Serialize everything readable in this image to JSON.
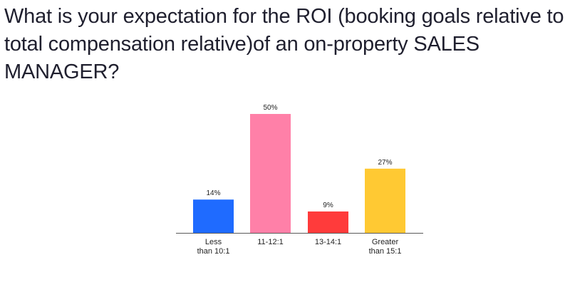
{
  "question": {
    "text": "What is your expectation for the ROI (booking goals relative to total compensation relative)of an on-property SALES MANAGER?"
  },
  "chart_data": {
    "type": "bar",
    "categories": [
      [
        "Less",
        "than 10:1"
      ],
      [
        "11-12:1"
      ],
      [
        "13-14:1"
      ],
      [
        "Greater",
        "than 15:1"
      ]
    ],
    "values": [
      14,
      50,
      9,
      27
    ],
    "value_labels": [
      "14%",
      "50%",
      "9%",
      "27%"
    ],
    "colors": [
      "#1f6bff",
      "#ff80a8",
      "#ff3b3b",
      "#ffc933"
    ],
    "ylim": [
      0,
      50
    ],
    "grid": false,
    "legend": "none"
  }
}
